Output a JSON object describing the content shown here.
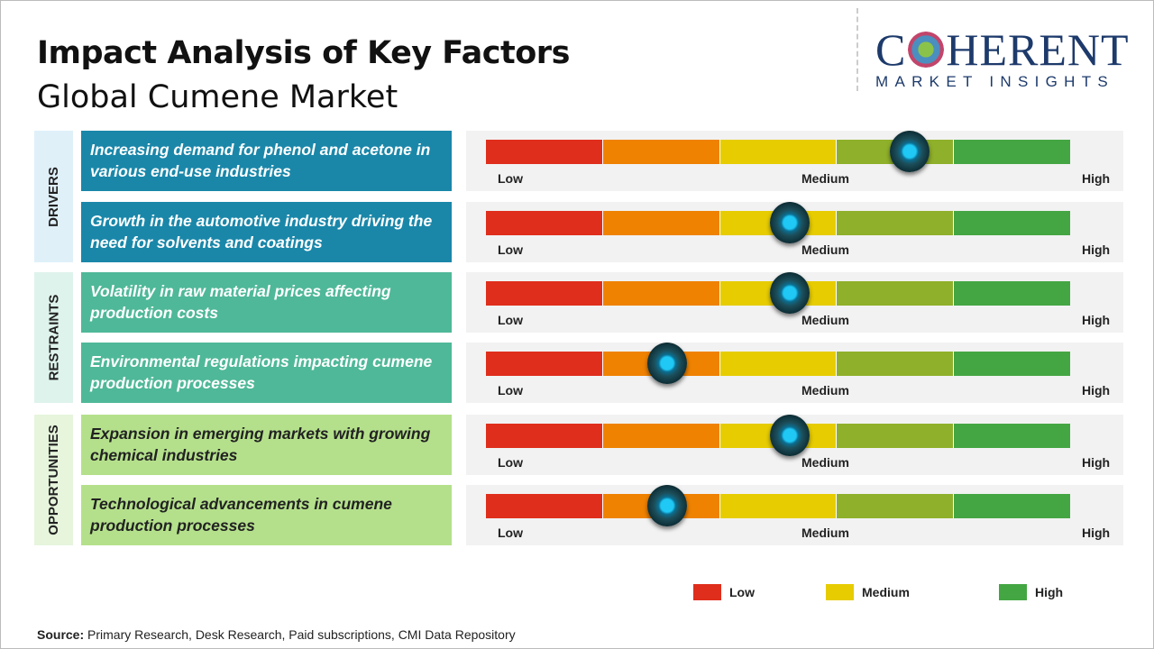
{
  "header": {
    "title": "Impact Analysis of Key Factors",
    "subtitle": "Global Cumene Market"
  },
  "logo": {
    "top": "COHERENT",
    "bottom": "MARKET INSIGHTS"
  },
  "chart_data": {
    "type": "gauge",
    "scale_labels": [
      "Low",
      "Medium",
      "High"
    ],
    "segment_colors": [
      "#df2e1c",
      "#ef8200",
      "#e6cc00",
      "#8fb02a",
      "#44a643"
    ],
    "categories": [
      {
        "name": "DRIVERS",
        "color": "#dff0f8",
        "box_color": "#1a87a9",
        "text_color": "#ffffff",
        "factors": [
          {
            "text": "Increasing demand for phenol and acetone in various end-use industries",
            "impact": 0.725
          },
          {
            "text": "Growth in the automotive industry driving the need for solvents and coatings",
            "impact": 0.52
          }
        ]
      },
      {
        "name": "RESTRAINTS",
        "color": "#def3ec",
        "box_color": "#4fb898",
        "text_color": "#ffffff",
        "factors": [
          {
            "text": "Volatility in raw material prices affecting production costs",
            "impact": 0.52
          },
          {
            "text": "Environmental regulations impacting cumene production processes",
            "impact": 0.31
          }
        ]
      },
      {
        "name": "OPPORTUNITIES",
        "color": "#e6f5dc",
        "box_color": "#b4e08b",
        "text_color": "#222222",
        "factors": [
          {
            "text": "Expansion in emerging markets with growing chemical industries",
            "impact": 0.52
          },
          {
            "text": "Technological advancements in cumene production processes",
            "impact": 0.31
          }
        ]
      }
    ],
    "legend": [
      {
        "label": "Low",
        "color": "#df2e1c"
      },
      {
        "label": "Medium",
        "color": "#e6cc00"
      },
      {
        "label": "High",
        "color": "#44a643"
      }
    ]
  },
  "footer": {
    "source_label": "Source:",
    "source_text": " Primary Research, Desk Research, Paid subscriptions, CMI Data Repository"
  }
}
